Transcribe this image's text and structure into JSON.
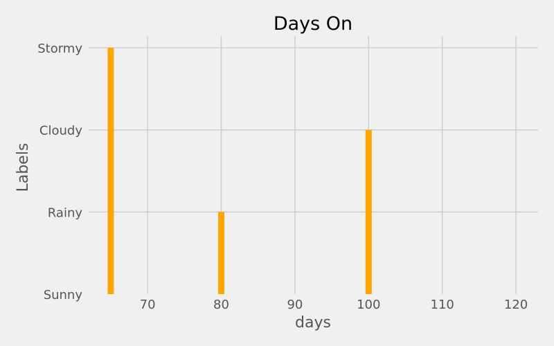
{
  "chart_data": {
    "type": "bar",
    "orientation": "vertical",
    "title": "Days On",
    "xlabel": "days",
    "ylabel": "Labels",
    "x": [
      65,
      80,
      100
    ],
    "values": [
      "Stormy",
      "Rainy",
      "Cloudy"
    ],
    "y_categories": [
      "Sunny",
      "Rainy",
      "Cloudy",
      "Stormy"
    ],
    "x_ticks": [
      70,
      80,
      90,
      100,
      110,
      120
    ],
    "xlim": [
      62,
      123
    ],
    "ylim": [
      "Sunny",
      "Stormy"
    ],
    "grid": true,
    "colors": {
      "bar": "#ffa500",
      "background": "#f0f0f0",
      "grid": "#cbcbcb"
    }
  }
}
